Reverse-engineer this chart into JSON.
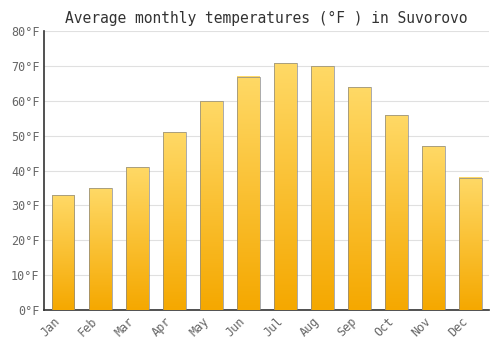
{
  "title": "Average monthly temperatures (°F ) in Suvorovo",
  "months": [
    "Jan",
    "Feb",
    "Mar",
    "Apr",
    "May",
    "Jun",
    "Jul",
    "Aug",
    "Sep",
    "Oct",
    "Nov",
    "Dec"
  ],
  "values": [
    33,
    35,
    41,
    51,
    60,
    67,
    71,
    70,
    64,
    56,
    47,
    38
  ],
  "bar_color_bottom": "#F5A800",
  "bar_color_top": "#FFD966",
  "bar_edge_color": "#888888",
  "ylim": [
    0,
    80
  ],
  "yticks": [
    0,
    10,
    20,
    30,
    40,
    50,
    60,
    70,
    80
  ],
  "background_color": "#ffffff",
  "grid_color": "#e0e0e0",
  "title_fontsize": 10.5,
  "tick_fontsize": 8.5,
  "font_family": "monospace",
  "tick_color": "#666666",
  "spine_color": "#333333"
}
